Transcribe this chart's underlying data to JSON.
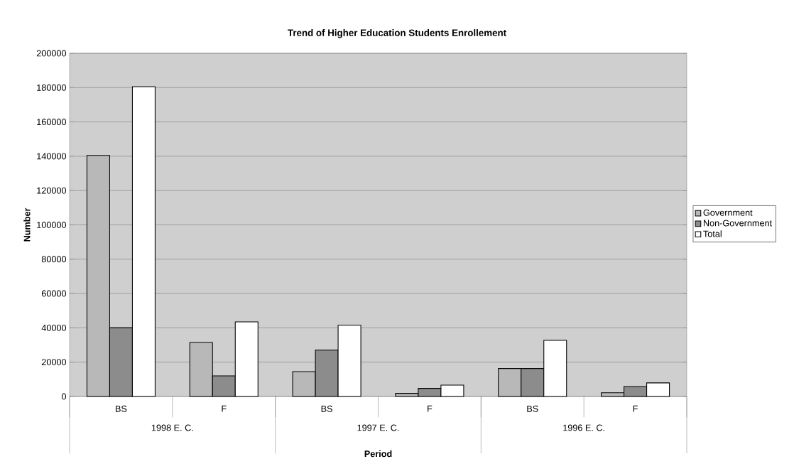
{
  "chart_data": {
    "type": "bar",
    "title": "Trend of Higher Education Students Enrollement",
    "xlabel": "Period",
    "ylabel": "Number",
    "categories": [
      "BS",
      "F",
      "BS",
      "F",
      "BS",
      "F"
    ],
    "annotations": [
      "1998 E. C.",
      "1997 E. C.",
      "1996 E. C."
    ],
    "series": [
      {
        "name": "Government",
        "color": "#b8b8b8",
        "values": [
          140500,
          31500,
          14500,
          1800,
          16300,
          2200
        ]
      },
      {
        "name": "Non-Government",
        "color": "#8c8c8c",
        "values": [
          40000,
          12000,
          27000,
          4700,
          16300,
          5800
        ]
      },
      {
        "name": "Total",
        "color": "#ffffff",
        "values": [
          180500,
          43500,
          41500,
          6600,
          32700,
          7900
        ]
      }
    ],
    "ylim": [
      0,
      200000
    ],
    "yticks": [
      0,
      20000,
      40000,
      60000,
      80000,
      100000,
      120000,
      140000,
      160000,
      180000,
      200000
    ],
    "grid": "y",
    "legend": "right"
  }
}
